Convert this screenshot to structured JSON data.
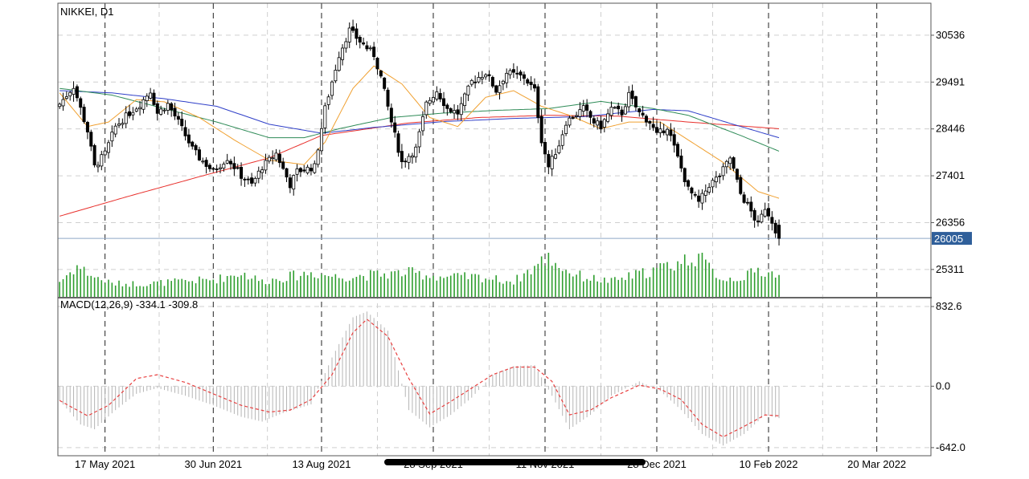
{
  "chart_data": [
    {
      "type": "candlestick",
      "title": "NIKKEI, D1",
      "y_ticks": [
        30536,
        29491,
        28446,
        27401,
        26356,
        25311
      ],
      "ylim": [
        24700,
        31250
      ],
      "current_price": 26005,
      "x_labels": [
        "17 May 2021",
        "30 Jun 2021",
        "13 Aug 2021",
        "28 Sep 2021",
        "11 Nov 2021",
        "28 Dec 2021",
        "10 Feb 2022",
        "20 Mar 2022"
      ],
      "x_label_index": [
        13,
        44,
        75,
        107,
        139,
        171,
        203,
        234
      ],
      "n_slots": 250,
      "colors": {
        "ma_red": "#e8302c",
        "ma_blue": "#2f3fc8",
        "ma_green": "#2e8b57",
        "ma_orange": "#f0a030",
        "volume": "#2e9e2e",
        "price_line": "#8fa6c8",
        "price_tag": "#2f5f9a"
      },
      "anchors": [
        [
          0,
          29000
        ],
        [
          4,
          29400
        ],
        [
          8,
          28400
        ],
        [
          10,
          27600
        ],
        [
          13,
          27900
        ],
        [
          16,
          28500
        ],
        [
          20,
          28800
        ],
        [
          23,
          29000
        ],
        [
          26,
          29300
        ],
        [
          28,
          28800
        ],
        [
          31,
          29000
        ],
        [
          34,
          28600
        ],
        [
          38,
          28000
        ],
        [
          40,
          27800
        ],
        [
          44,
          27500
        ],
        [
          48,
          27800
        ],
        [
          52,
          27400
        ],
        [
          55,
          27200
        ],
        [
          58,
          27600
        ],
        [
          62,
          27900
        ],
        [
          66,
          27200
        ],
        [
          68,
          27500
        ],
        [
          73,
          27600
        ],
        [
          76,
          28900
        ],
        [
          80,
          30100
        ],
        [
          83,
          30650
        ],
        [
          86,
          30400
        ],
        [
          90,
          30100
        ],
        [
          92,
          29600
        ],
        [
          95,
          28600
        ],
        [
          98,
          27700
        ],
        [
          102,
          28000
        ],
        [
          105,
          29000
        ],
        [
          108,
          29300
        ],
        [
          111,
          28900
        ],
        [
          114,
          28800
        ],
        [
          118,
          29500
        ],
        [
          122,
          29700
        ],
        [
          125,
          29300
        ],
        [
          128,
          29700
        ],
        [
          133,
          29600
        ],
        [
          136,
          29300
        ],
        [
          138,
          28200
        ],
        [
          140,
          27600
        ],
        [
          143,
          28100
        ],
        [
          145,
          28600
        ],
        [
          150,
          28900
        ],
        [
          153,
          28600
        ],
        [
          155,
          28500
        ],
        [
          158,
          28900
        ],
        [
          161,
          28800
        ],
        [
          163,
          29200
        ],
        [
          166,
          28800
        ],
        [
          169,
          28600
        ],
        [
          171,
          28300
        ],
        [
          174,
          28500
        ],
        [
          177,
          27800
        ],
        [
          180,
          27100
        ],
        [
          183,
          26800
        ],
        [
          186,
          27200
        ],
        [
          189,
          27400
        ],
        [
          192,
          27800
        ],
        [
          195,
          27000
        ],
        [
          198,
          26600
        ],
        [
          200,
          26300
        ],
        [
          202,
          26700
        ],
        [
          204,
          26400
        ],
        [
          206,
          26005
        ]
      ],
      "ma_red": [
        [
          0,
          26500
        ],
        [
          20,
          26950
        ],
        [
          40,
          27380
        ],
        [
          60,
          27800
        ],
        [
          75,
          28300
        ],
        [
          100,
          28580
        ],
        [
          120,
          28700
        ],
        [
          140,
          28750
        ],
        [
          160,
          28730
        ],
        [
          180,
          28600
        ],
        [
          206,
          28450
        ]
      ],
      "ma_blue": [
        [
          0,
          29300
        ],
        [
          15,
          29250
        ],
        [
          30,
          29120
        ],
        [
          45,
          28950
        ],
        [
          60,
          28550
        ],
        [
          75,
          28350
        ],
        [
          90,
          28480
        ],
        [
          110,
          28610
        ],
        [
          130,
          28680
        ],
        [
          150,
          28720
        ],
        [
          170,
          28880
        ],
        [
          180,
          28850
        ],
        [
          195,
          28500
        ],
        [
          206,
          28250
        ]
      ],
      "ma_green": [
        [
          0,
          29350
        ],
        [
          15,
          29200
        ],
        [
          30,
          28900
        ],
        [
          45,
          28600
        ],
        [
          60,
          28250
        ],
        [
          70,
          28250
        ],
        [
          80,
          28450
        ],
        [
          95,
          28700
        ],
        [
          110,
          28800
        ],
        [
          125,
          28860
        ],
        [
          140,
          28900
        ],
        [
          155,
          29060
        ],
        [
          170,
          28900
        ],
        [
          180,
          28750
        ],
        [
          195,
          28300
        ],
        [
          206,
          27950
        ]
      ],
      "ma_orange": [
        [
          0,
          29250
        ],
        [
          8,
          28500
        ],
        [
          14,
          28600
        ],
        [
          22,
          29100
        ],
        [
          30,
          29050
        ],
        [
          40,
          28700
        ],
        [
          50,
          28200
        ],
        [
          60,
          27750
        ],
        [
          70,
          27650
        ],
        [
          76,
          28150
        ],
        [
          84,
          29350
        ],
        [
          90,
          29850
        ],
        [
          98,
          29450
        ],
        [
          106,
          28700
        ],
        [
          114,
          28500
        ],
        [
          122,
          29150
        ],
        [
          130,
          29300
        ],
        [
          138,
          28950
        ],
        [
          146,
          28750
        ],
        [
          155,
          28450
        ],
        [
          163,
          28600
        ],
        [
          172,
          28600
        ],
        [
          180,
          28200
        ],
        [
          190,
          27700
        ],
        [
          200,
          27050
        ],
        [
          206,
          26900
        ]
      ],
      "volume_anchors": [
        [
          0,
          0.35
        ],
        [
          5,
          0.7
        ],
        [
          10,
          0.45
        ],
        [
          15,
          0.3
        ],
        [
          25,
          0.3
        ],
        [
          35,
          0.35
        ],
        [
          45,
          0.4
        ],
        [
          52,
          0.55
        ],
        [
          58,
          0.35
        ],
        [
          65,
          0.45
        ],
        [
          72,
          0.55
        ],
        [
          80,
          0.45
        ],
        [
          90,
          0.5
        ],
        [
          100,
          0.55
        ],
        [
          110,
          0.45
        ],
        [
          120,
          0.45
        ],
        [
          130,
          0.35
        ],
        [
          140,
          0.9
        ],
        [
          145,
          0.6
        ],
        [
          150,
          0.45
        ],
        [
          158,
          0.35
        ],
        [
          165,
          0.5
        ],
        [
          170,
          0.6
        ],
        [
          178,
          0.8
        ],
        [
          183,
          0.95
        ],
        [
          186,
          0.65
        ],
        [
          190,
          0.4
        ],
        [
          196,
          0.45
        ],
        [
          200,
          0.6
        ],
        [
          206,
          0.5
        ]
      ]
    },
    {
      "type": "macd",
      "title": "MACD(12,26,9) -334.1 -309.8",
      "y_ticks": [
        832.6,
        0.0,
        -642.0
      ],
      "ylim": [
        -710,
        900
      ],
      "histogram": [
        [
          0,
          -150
        ],
        [
          6,
          -400
        ],
        [
          10,
          -450
        ],
        [
          16,
          -250
        ],
        [
          22,
          -80
        ],
        [
          28,
          -20
        ],
        [
          36,
          -100
        ],
        [
          44,
          -200
        ],
        [
          52,
          -320
        ],
        [
          58,
          -370
        ],
        [
          64,
          -280
        ],
        [
          72,
          -190
        ],
        [
          78,
          300
        ],
        [
          84,
          720
        ],
        [
          88,
          780
        ],
        [
          94,
          580
        ],
        [
          100,
          -250
        ],
        [
          106,
          -430
        ],
        [
          112,
          -300
        ],
        [
          118,
          -120
        ],
        [
          124,
          120
        ],
        [
          130,
          210
        ],
        [
          136,
          220
        ],
        [
          141,
          -100
        ],
        [
          146,
          -450
        ],
        [
          152,
          -300
        ],
        [
          158,
          -100
        ],
        [
          166,
          50
        ],
        [
          172,
          -50
        ],
        [
          178,
          -250
        ],
        [
          184,
          -500
        ],
        [
          190,
          -620
        ],
        [
          196,
          -500
        ],
        [
          202,
          -300
        ],
        [
          206,
          -334
        ]
      ],
      "signal": [
        [
          0,
          -150
        ],
        [
          8,
          -310
        ],
        [
          14,
          -200
        ],
        [
          22,
          80
        ],
        [
          28,
          120
        ],
        [
          36,
          40
        ],
        [
          44,
          -80
        ],
        [
          52,
          -200
        ],
        [
          60,
          -270
        ],
        [
          66,
          -250
        ],
        [
          72,
          -140
        ],
        [
          78,
          120
        ],
        [
          84,
          560
        ],
        [
          88,
          700
        ],
        [
          94,
          520
        ],
        [
          100,
          80
        ],
        [
          106,
          -290
        ],
        [
          112,
          -160
        ],
        [
          118,
          -20
        ],
        [
          124,
          120
        ],
        [
          130,
          200
        ],
        [
          136,
          200
        ],
        [
          141,
          50
        ],
        [
          146,
          -300
        ],
        [
          152,
          -250
        ],
        [
          158,
          -120
        ],
        [
          166,
          10
        ],
        [
          172,
          -30
        ],
        [
          178,
          -140
        ],
        [
          184,
          -400
        ],
        [
          190,
          -530
        ],
        [
          196,
          -420
        ],
        [
          202,
          -300
        ],
        [
          206,
          -310
        ]
      ]
    }
  ]
}
